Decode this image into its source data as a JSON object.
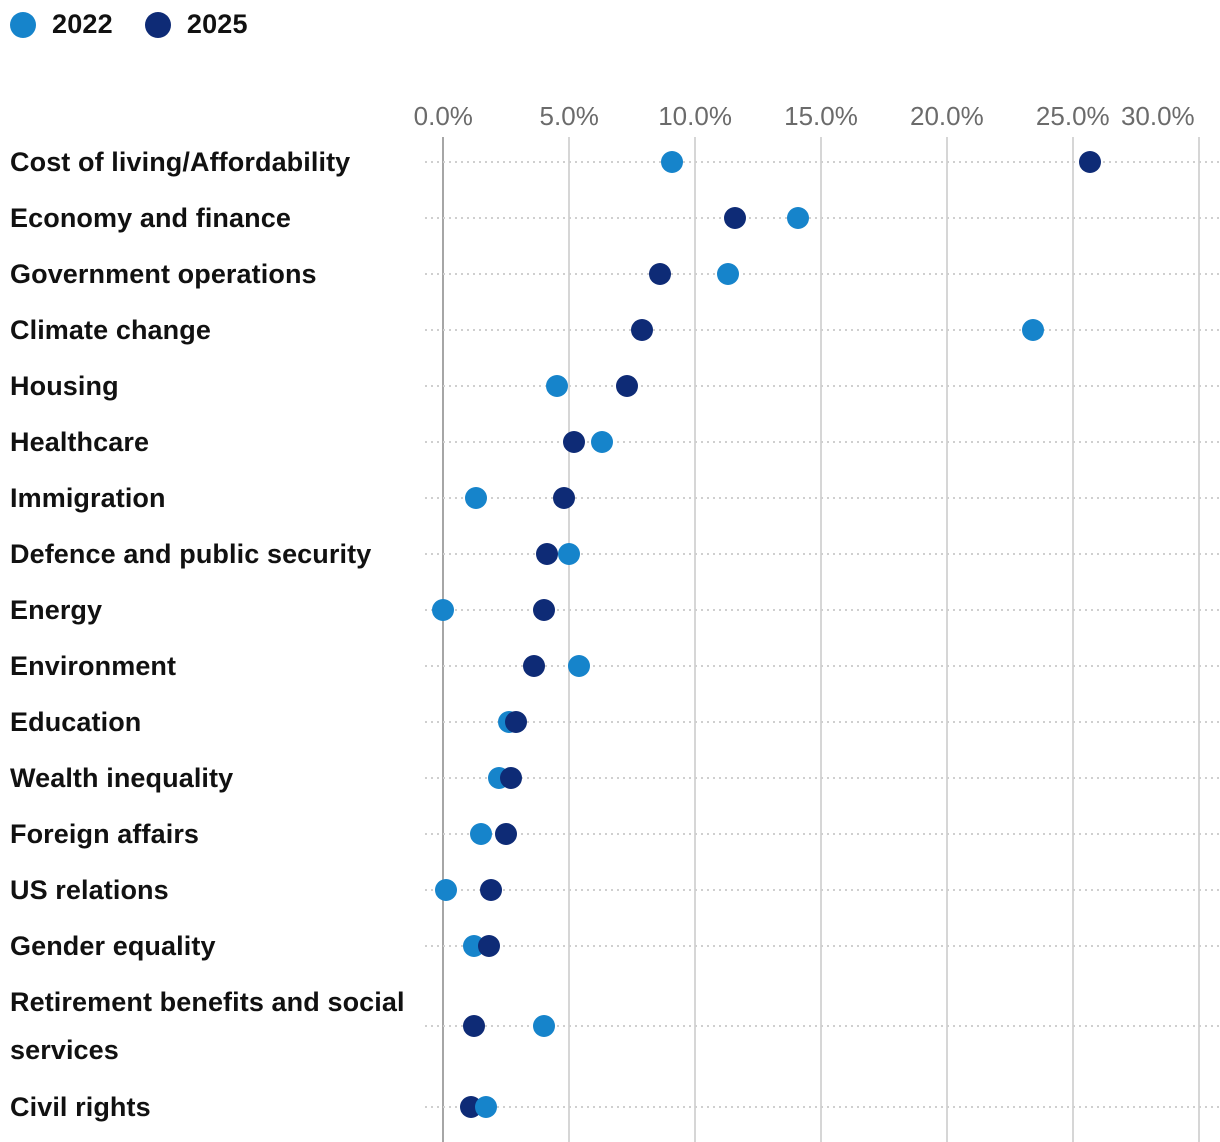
{
  "legend": [
    {
      "label": "2022",
      "color": "#1684cb"
    },
    {
      "label": "2025",
      "color": "#0e2b76"
    }
  ],
  "chart_data": {
    "type": "scatter",
    "variant": "dot-plot",
    "title": "",
    "xlabel": "",
    "ylabel": "",
    "x_axis": {
      "tick_labels": [
        "0.0%",
        "5.0%",
        "10.0%",
        "15.0%",
        "20.0%",
        "25.0%",
        "30.0%"
      ],
      "tick_values": [
        0,
        5,
        10,
        15,
        20,
        25,
        30
      ],
      "range": [
        0,
        30
      ],
      "unit": "%"
    },
    "grid": "vertical-solid-plus-row-dotted-guides",
    "legend_position": "top-left",
    "categories": [
      "Cost of living/Affordability",
      "Economy and finance",
      "Government operations",
      "Climate change",
      "Housing",
      "Healthcare",
      "Immigration",
      "Defence and public security",
      "Energy",
      "Environment",
      "Education",
      "Wealth inequality",
      "Foreign affairs",
      "US relations",
      "Gender equality",
      "Retirement benefits and social services",
      "Civil rights"
    ],
    "series": [
      {
        "name": "2022",
        "color": "#1684cb",
        "values": [
          9.1,
          14.1,
          11.3,
          23.4,
          4.5,
          6.3,
          1.3,
          5.0,
          0.0,
          5.4,
          2.6,
          2.2,
          1.5,
          0.1,
          1.2,
          4.0,
          1.7
        ]
      },
      {
        "name": "2025",
        "color": "#0e2b76",
        "values": [
          25.7,
          11.6,
          8.6,
          7.9,
          7.3,
          5.2,
          4.8,
          4.1,
          4.0,
          3.6,
          2.9,
          2.7,
          2.5,
          1.9,
          1.8,
          1.2,
          1.1
        ]
      }
    ]
  }
}
